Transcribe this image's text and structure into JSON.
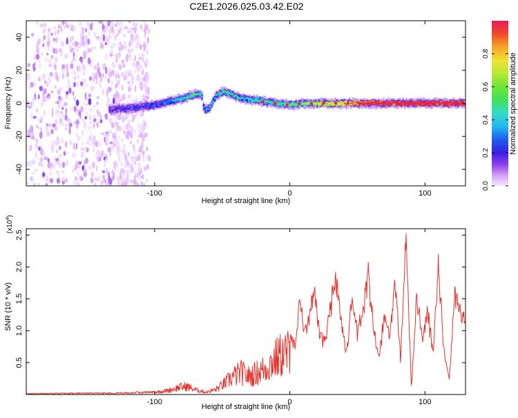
{
  "title": "C2E1.2026.025.03.42.E02",
  "colors": {
    "snr_line": "#e8302a",
    "axis": "#000000",
    "spectrogram_levels": [
      "#ffffff",
      "#f0d8ff",
      "#e2b4fb",
      "#c98af4",
      "#a35ded",
      "#6f2de6",
      "#3a1ce0",
      "#1a3ae8",
      "#1f7cf2",
      "#27c4f2",
      "#3ad9b0",
      "#58e35a",
      "#a6e83a",
      "#e3e236",
      "#f4a12a",
      "#ef4d2c",
      "#e0224d"
    ]
  },
  "chart_data": [
    {
      "type": "heatmap",
      "name": "spectrogram",
      "xlabel": "Height of straight line (km)",
      "ylabel": "Frequency (Hz)",
      "xlim": [
        -195,
        130
      ],
      "ylim": [
        -50,
        50
      ],
      "x_ticks": [
        -100,
        0,
        100
      ],
      "x_tick_labels": [
        "-100",
        "0",
        "100"
      ],
      "y_ticks": [
        -40,
        -20,
        0,
        20,
        40
      ],
      "y_tick_labels": [
        "-40",
        "-20",
        "0",
        "20",
        "40"
      ],
      "noise_region_x": [
        -195,
        -110
      ],
      "ridge": {
        "x": [
          -134,
          -120,
          -110,
          -100,
          -90,
          -80,
          -72,
          -66,
          -64,
          -60,
          -55,
          -50,
          -45,
          -40,
          -35,
          -30,
          -25,
          -20,
          -10,
          0,
          10,
          20,
          40,
          60,
          80,
          100,
          130
        ],
        "freq": [
          -4,
          -3,
          -2,
          -1,
          1,
          3,
          5,
          6,
          -4,
          -3,
          5,
          7,
          6,
          4,
          3,
          2,
          2,
          1,
          0,
          -1,
          0,
          0,
          0,
          0,
          0,
          0,
          0
        ],
        "amplitude": [
          0.25,
          0.3,
          0.3,
          0.35,
          0.45,
          0.5,
          0.55,
          0.5,
          0.4,
          0.45,
          0.5,
          0.55,
          0.5,
          0.55,
          0.45,
          0.5,
          0.55,
          0.55,
          0.55,
          0.6,
          0.6,
          0.7,
          0.75,
          0.95,
          0.95,
          0.95,
          0.95
        ]
      }
    },
    {
      "type": "colorbar",
      "name": "amplitude_scale",
      "label": "Normalized spectral amplitude",
      "range": [
        0,
        1
      ],
      "ticks": [
        0.0,
        0.2,
        0.4,
        0.6,
        0.8
      ],
      "tick_labels": [
        "0.0",
        "0.2",
        "0.4",
        "0.6",
        "0.8"
      ]
    },
    {
      "type": "line",
      "name": "snr",
      "xlabel": "Height of straight line (km)",
      "ylabel": "SNR (10 * v/v)",
      "exponent_label": "(x10",
      "exponent_power": "4",
      "exponent_close": ")",
      "xlim": [
        -195,
        130
      ],
      "ylim": [
        0,
        2.6
      ],
      "x_ticks": [
        -100,
        0,
        100
      ],
      "x_tick_labels": [
        "-100",
        "0",
        "100"
      ],
      "y_ticks": [
        0.5,
        1.0,
        1.5,
        2.0,
        2.5
      ],
      "y_tick_labels": [
        "0.5",
        "1.0",
        "1.5",
        "2.0",
        "2.5"
      ],
      "series": [
        {
          "name": "SNR",
          "x": [
            -195,
            -150,
            -120,
            -100,
            -90,
            -82,
            -76,
            -70,
            -62,
            -55,
            -48,
            -42,
            -36,
            -30,
            -24,
            -18,
            -12,
            -6,
            0,
            4,
            8,
            10,
            14,
            18,
            22,
            26,
            30,
            34,
            38,
            42,
            46,
            50,
            54,
            58,
            62,
            66,
            70,
            74,
            78,
            82,
            86,
            90,
            94,
            98,
            102,
            106,
            110,
            114,
            118,
            122,
            126,
            130
          ],
          "y": [
            0.02,
            0.03,
            0.04,
            0.06,
            0.1,
            0.18,
            0.2,
            0.12,
            0.06,
            0.12,
            0.28,
            0.45,
            0.55,
            0.45,
            0.55,
            0.65,
            0.85,
            1.0,
            1.05,
            0.75,
            1.65,
            1.05,
            1.2,
            1.75,
            1.05,
            0.85,
            1.4,
            1.95,
            1.2,
            0.65,
            1.6,
            1.05,
            1.35,
            2.05,
            1.05,
            0.6,
            1.3,
            1.0,
            1.9,
            0.55,
            2.62,
            0.1,
            1.65,
            0.9,
            1.35,
            0.7,
            2.1,
            0.75,
            0.25,
            1.65,
            1.35,
            1.2
          ]
        }
      ]
    }
  ]
}
